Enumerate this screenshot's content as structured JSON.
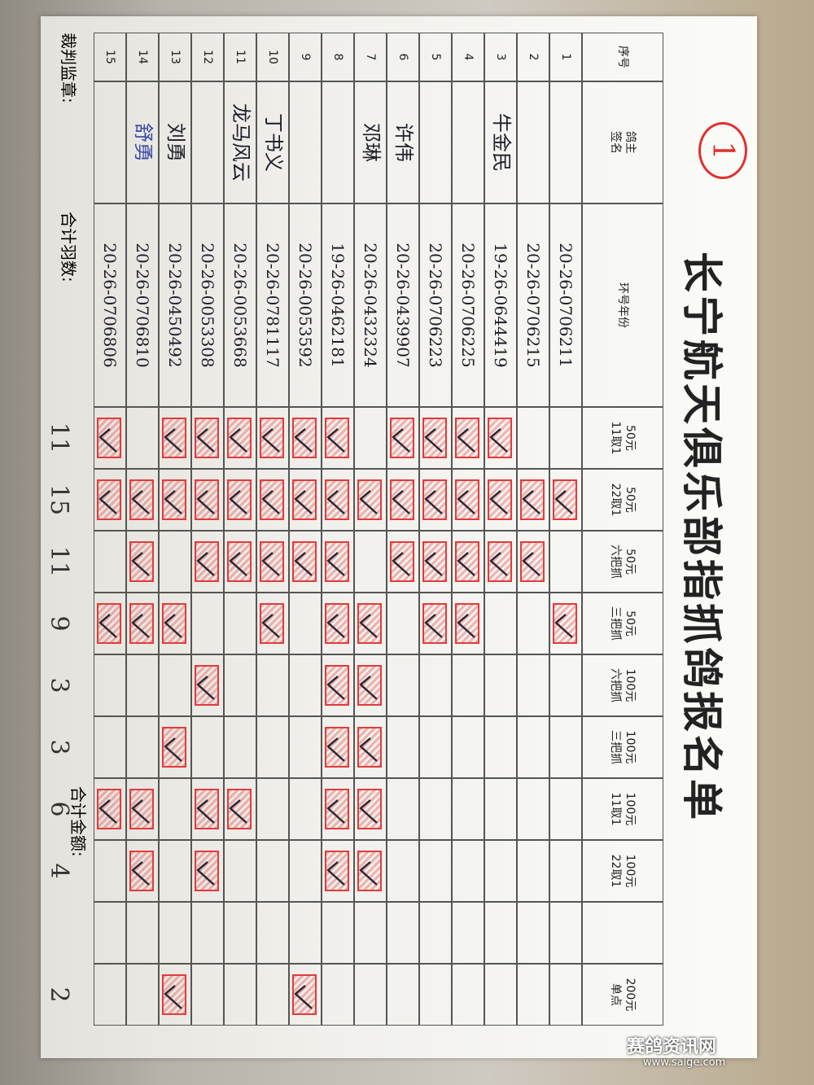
{
  "header": {
    "badge": "1",
    "title": "长宁航天俱乐部指抓鸽报名单"
  },
  "table": {
    "columns": [
      "序号",
      "鸽主\n签名",
      "环号年份"
    ],
    "price_columns": [
      "50元\n11取1",
      "50元\n22取1",
      "50元\n六把抓",
      "50元\n三把抓",
      "100元\n六把抓",
      "100元\n三把抓",
      "100元\n11取1",
      "100元\n22取1",
      null,
      "200元\n单点"
    ],
    "rows": [
      {
        "no": "1",
        "owner": null,
        "ring": "20-26-0706211",
        "marks": [
          false,
          true,
          false,
          true,
          false,
          false,
          false,
          false,
          false,
          false
        ]
      },
      {
        "no": "2",
        "owner": null,
        "ring": "20-26-0706215",
        "marks": [
          false,
          true,
          true,
          false,
          false,
          false,
          false,
          false,
          false,
          false
        ]
      },
      {
        "no": "3",
        "owner": "牛金民",
        "ring": "19-26-0644419",
        "marks": [
          true,
          true,
          true,
          false,
          false,
          false,
          false,
          false,
          false,
          false
        ]
      },
      {
        "no": "4",
        "owner": null,
        "ring": "20-26-0706225",
        "marks": [
          true,
          true,
          true,
          true,
          false,
          false,
          false,
          false,
          false,
          false
        ]
      },
      {
        "no": "5",
        "owner": null,
        "ring": "20-26-0706223",
        "marks": [
          true,
          true,
          true,
          true,
          false,
          false,
          false,
          false,
          false,
          false
        ]
      },
      {
        "no": "6",
        "owner": "许伟",
        "ring": "20-26-0439907",
        "marks": [
          true,
          true,
          true,
          false,
          false,
          false,
          false,
          false,
          false,
          false
        ]
      },
      {
        "no": "7",
        "owner": "邓琳",
        "ring": "20-26-0432324",
        "marks": [
          false,
          true,
          false,
          true,
          true,
          true,
          true,
          true,
          false,
          false
        ]
      },
      {
        "no": "8",
        "owner": null,
        "ring": "19-26-0462181",
        "marks": [
          true,
          true,
          true,
          true,
          true,
          true,
          true,
          true,
          false,
          false
        ]
      },
      {
        "no": "9",
        "owner": null,
        "ring": "20-26-0053592",
        "marks": [
          true,
          true,
          true,
          false,
          false,
          false,
          false,
          false,
          false,
          true
        ]
      },
      {
        "no": "10",
        "owner": "丁书义",
        "ring": "20-26-0781117",
        "marks": [
          true,
          true,
          true,
          true,
          false,
          false,
          false,
          false,
          false,
          false
        ]
      },
      {
        "no": "11",
        "owner": "龙马风云",
        "ring": "20-26-0053668",
        "marks": [
          true,
          true,
          true,
          false,
          false,
          false,
          true,
          false,
          false,
          false
        ]
      },
      {
        "no": "12",
        "owner": null,
        "ring": "20-26-0053308",
        "marks": [
          true,
          true,
          true,
          false,
          true,
          false,
          true,
          true,
          false,
          false
        ]
      },
      {
        "no": "13",
        "owner": "刘勇",
        "ring": "20-26-0450492",
        "marks": [
          true,
          true,
          false,
          true,
          false,
          true,
          false,
          false,
          false,
          true
        ]
      },
      {
        "no": "14",
        "owner": "舒勇",
        "ring": "20-26-0706810",
        "marks": [
          false,
          true,
          true,
          true,
          false,
          false,
          true,
          true,
          false,
          false
        ]
      },
      {
        "no": "15",
        "owner": null,
        "ring": "20-26-0706806",
        "marks": [
          true,
          true,
          false,
          true,
          false,
          false,
          true,
          false,
          false,
          false
        ]
      }
    ]
  },
  "footer": {
    "referee": "裁判监章:",
    "count_label": "合计羽数:",
    "amount_label": "合计金额:",
    "totals": [
      "11",
      "15",
      "11",
      "9",
      "3",
      "3",
      "6",
      "4",
      null,
      "2"
    ]
  },
  "watermark": {
    "name": "赛鸽资讯网",
    "url": "www.saige.com"
  }
}
